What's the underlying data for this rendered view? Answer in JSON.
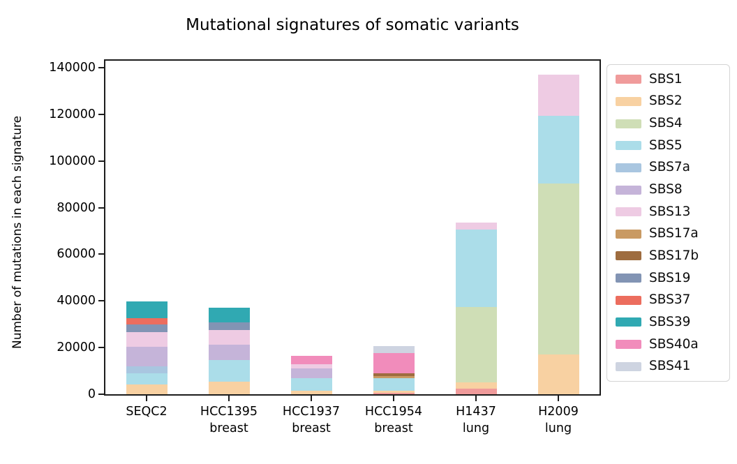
{
  "chart_data": {
    "type": "bar",
    "stacked": true,
    "title": "Mutational signatures of somatic variants",
    "xlabel": "",
    "ylabel": "Number of mutations in each signature",
    "categories": [
      {
        "name": "SEQC2",
        "tissue": ""
      },
      {
        "name": "HCC1395",
        "tissue": "breast"
      },
      {
        "name": "HCC1937",
        "tissue": "breast"
      },
      {
        "name": "HCC1954",
        "tissue": "breast"
      },
      {
        "name": "H1437",
        "tissue": "lung"
      },
      {
        "name": "H2009",
        "tissue": "lung"
      }
    ],
    "ylim": [
      0,
      140000
    ],
    "yticks": [
      0,
      20000,
      40000,
      60000,
      80000,
      100000,
      120000,
      140000
    ],
    "grid": false,
    "legend_position": "right",
    "series": [
      {
        "name": "SBS1",
        "color": "#f09b9b",
        "values": [
          0,
          0,
          0,
          600,
          2400,
          0
        ]
      },
      {
        "name": "SBS2",
        "color": "#f8d1a2",
        "values": [
          4300,
          5300,
          1500,
          800,
          2700,
          17000
        ]
      },
      {
        "name": "SBS4",
        "color": "#cfdeb6",
        "values": [
          0,
          0,
          0,
          0,
          32300,
          73200
        ]
      },
      {
        "name": "SBS5",
        "color": "#abdde9",
        "values": [
          4800,
          9500,
          5300,
          5500,
          33300,
          29100
        ]
      },
      {
        "name": "SBS7a",
        "color": "#a9c6e0",
        "values": [
          2800,
          0,
          0,
          0,
          0,
          0
        ]
      },
      {
        "name": "SBS8",
        "color": "#c5b4d9",
        "values": [
          8400,
          6400,
          4200,
          0,
          0,
          0
        ]
      },
      {
        "name": "SBS13",
        "color": "#eecbe3",
        "values": [
          6200,
          6300,
          2000,
          0,
          3000,
          17700
        ]
      },
      {
        "name": "SBS17a",
        "color": "#c99a63",
        "values": [
          0,
          0,
          0,
          900,
          0,
          0
        ]
      },
      {
        "name": "SBS17b",
        "color": "#9e6c3f",
        "values": [
          0,
          0,
          0,
          1300,
          0,
          0
        ]
      },
      {
        "name": "SBS19",
        "color": "#8294b4",
        "values": [
          3500,
          3200,
          0,
          0,
          0,
          0
        ]
      },
      {
        "name": "SBS37",
        "color": "#ec6d5e",
        "values": [
          2500,
          0,
          0,
          0,
          0,
          0
        ]
      },
      {
        "name": "SBS39",
        "color": "#30a9b2",
        "values": [
          7300,
          6300,
          0,
          0,
          0,
          0
        ]
      },
      {
        "name": "SBS40a",
        "color": "#f18cbb",
        "values": [
          0,
          0,
          3500,
          8600,
          0,
          0
        ]
      },
      {
        "name": "SBS41",
        "color": "#ced4e1",
        "values": [
          0,
          0,
          0,
          3100,
          0,
          0
        ]
      }
    ]
  },
  "style": {
    "background": "#ffffff",
    "spine_color": "#1c1c1c",
    "text_color": "#000000",
    "legend_border": "#d4d4d4"
  }
}
